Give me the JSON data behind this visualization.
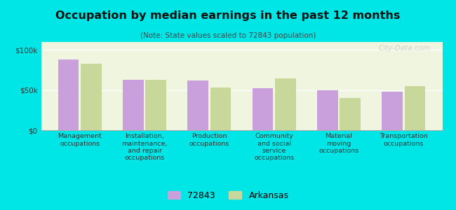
{
  "title": "Occupation by median earnings in the past 12 months",
  "subtitle": "(Note: State values scaled to 72843 population)",
  "categories": [
    "Management\noccupations",
    "Installation,\nmaintenance,\nand repair\noccupations",
    "Production\noccupations",
    "Community\nand social\nservice\noccupations",
    "Material\nmoving\noccupations",
    "Transportation\noccupations"
  ],
  "values_72843": [
    88000,
    63000,
    62000,
    52000,
    50000,
    48000
  ],
  "values_arkansas": [
    83000,
    63000,
    53000,
    65000,
    40000,
    55000
  ],
  "color_72843": "#c9a0dc",
  "color_arkansas": "#c8d89a",
  "background_color": "#00e5e5",
  "plot_bg_color": "#f0f5e0",
  "yticks": [
    0,
    50000,
    100000
  ],
  "ytick_labels": [
    "$0",
    "$50k",
    "$100k"
  ],
  "ylim": [
    0,
    110000
  ],
  "legend_72843": "72843",
  "legend_arkansas": "Arkansas",
  "watermark": "City-Data.com"
}
